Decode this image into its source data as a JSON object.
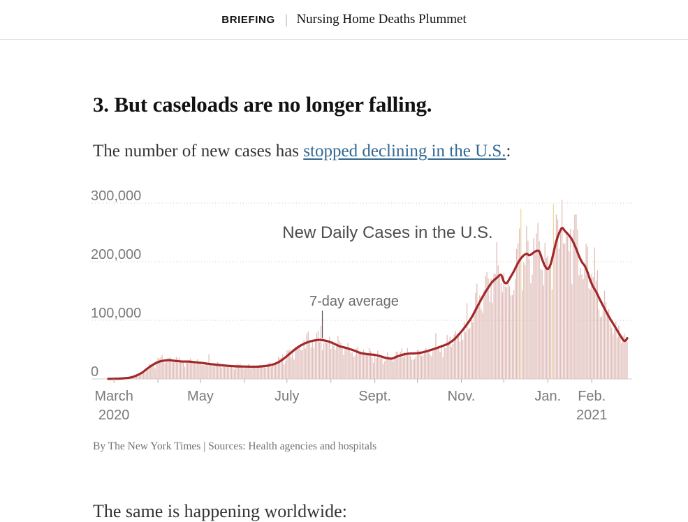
{
  "header": {
    "kicker": "BRIEFING",
    "separator": "|",
    "title": "Nursing Home Deaths Plummet"
  },
  "article": {
    "heading": "3. But caseloads are no longer falling.",
    "lead_before": "The number of new cases has ",
    "lead_link": "stopped declining in the U.S.",
    "lead_after": ":",
    "closing": "The same is happening worldwide:"
  },
  "chart": {
    "byline": "By The New York Times | Sources: Health agencies and hospitals",
    "colors": {
      "bar": "#e0bdb9",
      "bar_anomaly": "#eed7a2",
      "line": "#a2282a",
      "grid": "#c9c9c9",
      "axis": "#cfcfcf",
      "tick": "#b3b3b3",
      "label": "#7a7a7a",
      "title": "#4d4d4d",
      "annotation": "#6b6b6b",
      "annotation_line": "#555555"
    }
  },
  "chart_data": {
    "type": "bar",
    "title": "New Daily Cases in the U.S.",
    "annotation": "7-day average",
    "annotation_target_day": 151,
    "x_domain_days": 366,
    "x_domain": [
      "2020-02-26",
      "2021-02-26"
    ],
    "ylim": [
      0,
      300000
    ],
    "grid": "dotted-horizontal",
    "y_ticks": [
      {
        "value": 0,
        "label": "0"
      },
      {
        "value": 100000,
        "label": "100,000"
      },
      {
        "value": 200000,
        "label": "200,000"
      },
      {
        "value": 300000,
        "label": "300,000"
      }
    ],
    "month_tick_days": [
      4,
      35,
      65,
      96,
      126,
      157,
      188,
      218,
      249,
      279,
      310,
      341
    ],
    "x_tick_labels": [
      {
        "day": 4,
        "label": "March",
        "sub": "2020"
      },
      {
        "day": 65,
        "label": "May",
        "sub": ""
      },
      {
        "day": 126,
        "label": "July",
        "sub": ""
      },
      {
        "day": 188,
        "label": "Sept.",
        "sub": ""
      },
      {
        "day": 249,
        "label": "Nov.",
        "sub": ""
      },
      {
        "day": 310,
        "label": "Jan.",
        "sub": ""
      },
      {
        "day": 341,
        "label": "Feb.",
        "sub": "2021"
      }
    ],
    "series": [
      {
        "name": "7-day average",
        "points": [
          [
            0,
            100
          ],
          [
            4,
            300
          ],
          [
            8,
            600
          ],
          [
            12,
            1300
          ],
          [
            16,
            2600
          ],
          [
            20,
            6000
          ],
          [
            24,
            11000
          ],
          [
            28,
            18500
          ],
          [
            32,
            25000
          ],
          [
            36,
            29500
          ],
          [
            40,
            31500
          ],
          [
            43,
            32000
          ],
          [
            47,
            30800
          ],
          [
            52,
            29800
          ],
          [
            57,
            29600
          ],
          [
            61,
            28600
          ],
          [
            65,
            27600
          ],
          [
            70,
            26000
          ],
          [
            75,
            24500
          ],
          [
            80,
            23300
          ],
          [
            85,
            22300
          ],
          [
            90,
            21500
          ],
          [
            95,
            21200
          ],
          [
            100,
            21000
          ],
          [
            104,
            20800
          ],
          [
            108,
            21400
          ],
          [
            112,
            22500
          ],
          [
            116,
            24500
          ],
          [
            120,
            28500
          ],
          [
            124,
            35000
          ],
          [
            128,
            43000
          ],
          [
            132,
            51000
          ],
          [
            136,
            57500
          ],
          [
            141,
            63000
          ],
          [
            146,
            65800
          ],
          [
            150,
            66500
          ],
          [
            154,
            64800
          ],
          [
            158,
            61500
          ],
          [
            163,
            56000
          ],
          [
            168,
            52800
          ],
          [
            173,
            48800
          ],
          [
            178,
            44300
          ],
          [
            183,
            42200
          ],
          [
            188,
            41000
          ],
          [
            192,
            38600
          ],
          [
            196,
            35800
          ],
          [
            200,
            34800
          ],
          [
            204,
            38500
          ],
          [
            208,
            41500
          ],
          [
            212,
            43200
          ],
          [
            216,
            43600
          ],
          [
            220,
            44500
          ],
          [
            224,
            46800
          ],
          [
            228,
            49800
          ],
          [
            232,
            53000
          ],
          [
            236,
            56500
          ],
          [
            240,
            60500
          ],
          [
            244,
            67500
          ],
          [
            248,
            78000
          ],
          [
            252,
            90000
          ],
          [
            256,
            104000
          ],
          [
            260,
            122000
          ],
          [
            264,
            140000
          ],
          [
            268,
            156000
          ],
          [
            271,
            166000
          ],
          [
            274,
            172500
          ],
          [
            277,
            177500
          ],
          [
            279,
            166000
          ],
          [
            281,
            163500
          ],
          [
            283,
            171000
          ],
          [
            286,
            183500
          ],
          [
            289,
            198000
          ],
          [
            292,
            208500
          ],
          [
            295,
            213500
          ],
          [
            297,
            211000
          ],
          [
            300,
            215500
          ],
          [
            302,
            218500
          ],
          [
            304,
            217500
          ],
          [
            306,
            204000
          ],
          [
            308,
            192500
          ],
          [
            310,
            187500
          ],
          [
            312,
            196000
          ],
          [
            314,
            215000
          ],
          [
            316,
            235000
          ],
          [
            318,
            249000
          ],
          [
            320,
            257500
          ],
          [
            322,
            252500
          ],
          [
            324,
            247500
          ],
          [
            327,
            238000
          ],
          [
            330,
            222000
          ],
          [
            332,
            209500
          ],
          [
            334,
            199500
          ],
          [
            336,
            193000
          ],
          [
            338,
            182000
          ],
          [
            340,
            168000
          ],
          [
            342,
            157000
          ],
          [
            344,
            149000
          ],
          [
            347,
            134000
          ],
          [
            350,
            120000
          ],
          [
            353,
            106500
          ],
          [
            356,
            94500
          ],
          [
            359,
            82500
          ],
          [
            361,
            74500
          ],
          [
            363,
            67000
          ],
          [
            364,
            64800
          ],
          [
            365,
            65800
          ],
          [
            366,
            69500
          ]
        ]
      }
    ],
    "anomaly_bars": [
      {
        "day": 291,
        "value": 290000
      },
      {
        "day": 314,
        "value": 298000
      }
    ],
    "spike_bars": [
      {
        "day": 317,
        "value": 272000
      },
      {
        "day": 320,
        "value": 306000
      }
    ]
  }
}
